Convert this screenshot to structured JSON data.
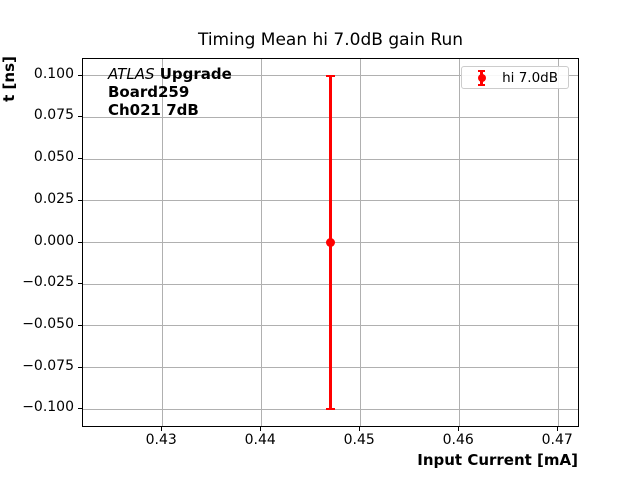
{
  "figure": {
    "title": "Timing Mean hi 7.0dB gain Run",
    "annotation": {
      "experiment": "ATLAS",
      "experiment_suffix": " Upgrade",
      "board": "Board259",
      "channel": "Ch021 7dB"
    },
    "legend": {
      "label": "hi 7.0dB"
    },
    "colors": {
      "series": "#ff0000",
      "grid": "#b0b0b0",
      "axis": "#000000",
      "legend_border": "#cccccc",
      "background": "#ffffff"
    }
  },
  "chart_data": {
    "type": "scatter",
    "title": "Timing Mean hi 7.0dB gain Run",
    "xlabel": "Input Current [mA]",
    "ylabel": "t [ns]",
    "xlim": [
      0.422,
      0.472
    ],
    "ylim": [
      -0.11,
      0.11
    ],
    "xticks": [
      0.43,
      0.44,
      0.45,
      0.46,
      0.47
    ],
    "xtick_labels": [
      "0.43",
      "0.44",
      "0.45",
      "0.46",
      "0.47"
    ],
    "yticks": [
      0.1,
      0.075,
      0.05,
      0.025,
      0.0,
      -0.025,
      -0.05,
      -0.075,
      -0.1
    ],
    "ytick_labels": [
      "0.100",
      "0.075",
      "0.050",
      "0.025",
      "0.000",
      "−0.025",
      "−0.050",
      "−0.075",
      "−0.100"
    ],
    "grid": true,
    "legend_position": "upper right",
    "series": [
      {
        "name": "hi 7.0dB",
        "color": "#ff0000",
        "marker": "circle",
        "points": [
          {
            "x": 0.447,
            "y": 0.0,
            "yerr": 0.1
          }
        ]
      }
    ]
  }
}
